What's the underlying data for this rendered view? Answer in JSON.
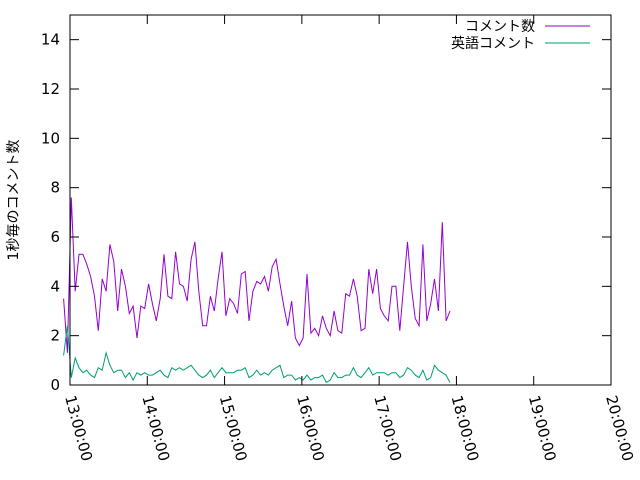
{
  "chart_data": {
    "type": "line",
    "xlabel": "",
    "ylabel": "1秒毎のコメント数",
    "ylim": [
      0,
      15
    ],
    "xlim": [
      "13:00:00",
      "20:00:00"
    ],
    "y_ticks": [
      "0",
      "2",
      "4",
      "6",
      "8",
      "10",
      "12",
      "14"
    ],
    "x_ticks": [
      "13:00:00",
      "14:00:00",
      "15:00:00",
      "16:00:00",
      "17:00:00",
      "18:00:00",
      "19:00:00",
      "20:00:00"
    ],
    "legend_position": "top-right",
    "grid": false,
    "sample_interval_minutes": 3,
    "x_start": "12:55:00",
    "series": [
      {
        "name": "コメント数",
        "color": "#9400d3",
        "values": [
          3.5,
          1.3,
          7.6,
          3.8,
          5.3,
          5.3,
          4.9,
          4.4,
          3.6,
          2.2,
          4.3,
          3.8,
          5.7,
          5.0,
          3.0,
          4.7,
          4.0,
          2.9,
          3.2,
          1.9,
          3.2,
          3.1,
          4.1,
          3.3,
          2.6,
          3.5,
          5.3,
          3.6,
          3.5,
          5.4,
          4.1,
          4.0,
          3.4,
          5.1,
          5.8,
          3.8,
          2.4,
          2.4,
          3.6,
          3.0,
          4.3,
          5.4,
          2.8,
          3.5,
          3.3,
          2.9,
          4.5,
          4.6,
          2.6,
          3.8,
          4.2,
          4.1,
          4.4,
          3.8,
          4.8,
          5.1,
          4.1,
          3.2,
          2.4,
          3.4,
          1.9,
          1.6,
          1.9,
          4.5,
          2.1,
          2.3,
          2.0,
          2.8,
          2.3,
          2.0,
          3.0,
          2.2,
          2.1,
          3.7,
          3.6,
          4.3,
          3.6,
          2.2,
          2.3,
          4.7,
          3.7,
          4.7,
          3.1,
          2.8,
          2.6,
          4.0,
          4.0,
          2.2,
          4.0,
          5.8,
          4.0,
          2.7,
          2.4,
          5.7,
          2.6,
          3.3,
          4.3,
          3.0,
          6.6,
          2.6,
          3.0
        ]
      },
      {
        "name": "英語コメント",
        "color": "#009e73",
        "values": [
          1.2,
          2.4,
          0.3,
          1.1,
          0.7,
          0.5,
          0.6,
          0.4,
          0.3,
          0.7,
          0.6,
          1.3,
          0.8,
          0.5,
          0.6,
          0.6,
          0.3,
          0.5,
          0.2,
          0.5,
          0.4,
          0.5,
          0.4,
          0.4,
          0.5,
          0.6,
          0.4,
          0.3,
          0.7,
          0.6,
          0.7,
          0.6,
          0.7,
          0.8,
          0.6,
          0.4,
          0.3,
          0.4,
          0.6,
          0.3,
          0.5,
          0.7,
          0.5,
          0.5,
          0.5,
          0.6,
          0.6,
          0.7,
          0.3,
          0.4,
          0.6,
          0.4,
          0.5,
          0.4,
          0.6,
          0.7,
          0.8,
          0.3,
          0.4,
          0.4,
          0.2,
          0.3,
          0.2,
          0.4,
          0.2,
          0.3,
          0.3,
          0.4,
          0.1,
          0.2,
          0.5,
          0.3,
          0.3,
          0.4,
          0.4,
          0.7,
          0.4,
          0.3,
          0.5,
          0.7,
          0.4,
          0.5,
          0.5,
          0.5,
          0.4,
          0.5,
          0.5,
          0.3,
          0.4,
          0.7,
          0.6,
          0.4,
          0.3,
          0.6,
          0.2,
          0.3,
          0.8,
          0.6,
          0.5,
          0.4,
          0.1
        ]
      }
    ]
  }
}
